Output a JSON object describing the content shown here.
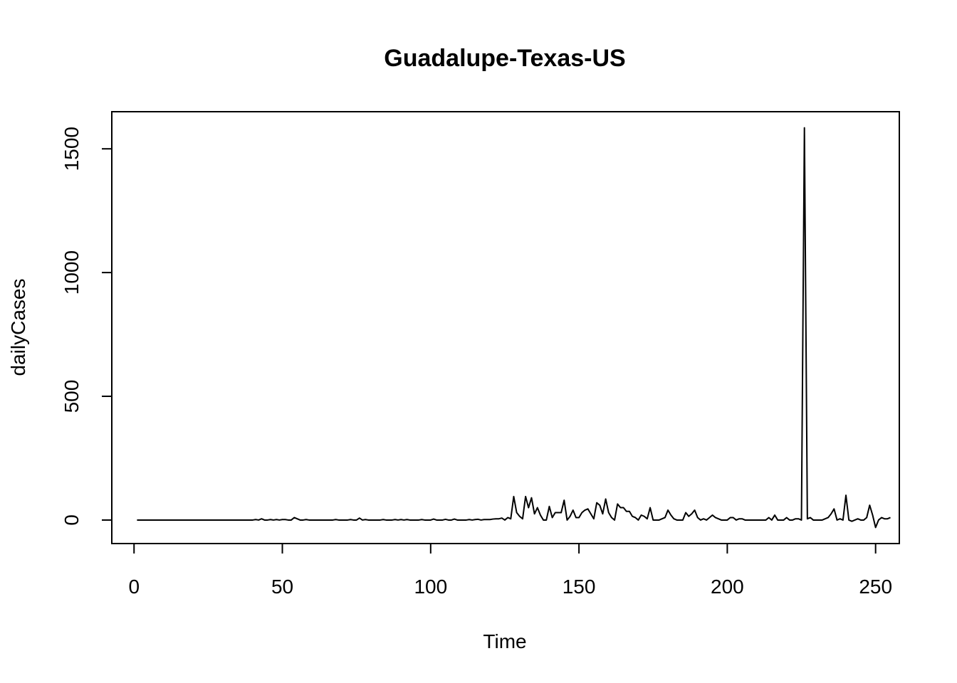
{
  "chart_data": {
    "type": "line",
    "title": "Guadalupe-Texas-US",
    "xlabel": "Time",
    "ylabel": "dailyCases",
    "xlim": [
      -7.5,
      258
    ],
    "ylim": [
      -95,
      1650
    ],
    "x_ticks": [
      0,
      50,
      100,
      150,
      200,
      250
    ],
    "y_ticks": [
      0,
      500,
      1000,
      1500
    ],
    "grid": false,
    "legend": "none",
    "line_color": "#000000",
    "series": [
      {
        "values": [
          0,
          0,
          0,
          0,
          0,
          0,
          0,
          0,
          0,
          0,
          0,
          0,
          0,
          0,
          0,
          0,
          0,
          0,
          0,
          0,
          0,
          0,
          0,
          0,
          0,
          0,
          0,
          0,
          0,
          0,
          0,
          0,
          0,
          0,
          0,
          0,
          0,
          0,
          0,
          0,
          2,
          0,
          5,
          0,
          0,
          2,
          0,
          2,
          0,
          2,
          2,
          0,
          0,
          10,
          5,
          0,
          0,
          2,
          0,
          0,
          0,
          0,
          0,
          0,
          0,
          0,
          0,
          2,
          0,
          0,
          0,
          0,
          2,
          0,
          0,
          8,
          0,
          2,
          0,
          0,
          0,
          0,
          0,
          2,
          0,
          0,
          0,
          2,
          0,
          2,
          0,
          2,
          0,
          0,
          0,
          0,
          2,
          0,
          0,
          0,
          4,
          0,
          0,
          0,
          3,
          0,
          0,
          4,
          0,
          0,
          0,
          0,
          2,
          0,
          2,
          3,
          0,
          2,
          2,
          2,
          4,
          5,
          5,
          8,
          0,
          10,
          5,
          95,
          30,
          15,
          5,
          95,
          50,
          90,
          25,
          50,
          20,
          0,
          0,
          55,
          10,
          30,
          30,
          30,
          80,
          0,
          15,
          40,
          10,
          10,
          30,
          40,
          45,
          25,
          5,
          70,
          60,
          25,
          85,
          30,
          10,
          0,
          65,
          50,
          50,
          35,
          35,
          15,
          10,
          0,
          20,
          15,
          5,
          50,
          0,
          0,
          0,
          5,
          10,
          40,
          20,
          5,
          0,
          0,
          0,
          30,
          15,
          25,
          40,
          10,
          0,
          5,
          0,
          10,
          20,
          10,
          5,
          0,
          0,
          0,
          10,
          10,
          0,
          5,
          5,
          0,
          0,
          0,
          0,
          0,
          0,
          0,
          0,
          10,
          0,
          20,
          0,
          0,
          0,
          10,
          0,
          0,
          5,
          5,
          0,
          1585,
          5,
          10,
          0,
          0,
          0,
          0,
          5,
          10,
          25,
          45,
          0,
          5,
          0,
          100,
          0,
          -5,
          0,
          5,
          0,
          0,
          10,
          60,
          20,
          -30,
          0,
          10,
          5,
          5,
          10
        ]
      }
    ]
  }
}
